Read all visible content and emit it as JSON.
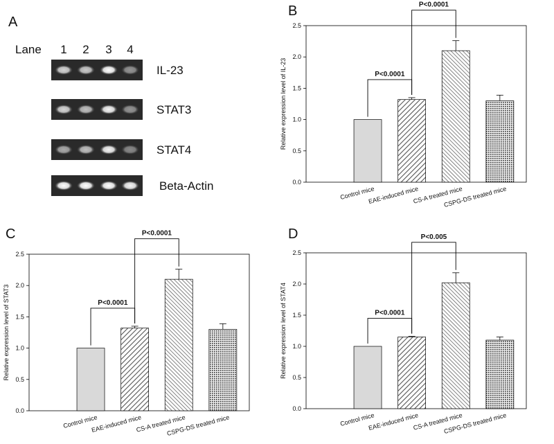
{
  "panel_labels": [
    "A",
    "B",
    "C",
    "D"
  ],
  "gel": {
    "lane_header": "Lane",
    "lanes": [
      "1",
      "2",
      "3",
      "4"
    ],
    "bands": [
      "IL-23",
      "STAT3",
      "STAT4",
      "Beta-Actin"
    ]
  },
  "chart_data": [
    {
      "type": "bar",
      "y_label": "Relative expression level of IL-23",
      "categories": [
        "Control mice",
        "EAE-induced mice",
        "CS-A treated mice",
        "CSPG-DS treated mice"
      ],
      "values": [
        1.0,
        1.32,
        2.1,
        1.3
      ],
      "errors": [
        0,
        0.03,
        0.16,
        0.09
      ],
      "ylim": [
        0,
        2.5
      ],
      "yticks": [
        {
          "value": 0,
          "label": "0.0"
        },
        {
          "value": 0.5,
          "label": "0.5"
        },
        {
          "value": 1,
          "label": "1.0"
        },
        {
          "value": 1.5,
          "label": "1.5"
        },
        {
          "value": 2,
          "label": "2.0"
        },
        {
          "value": 2.5,
          "label": "2.5"
        }
      ],
      "annotations": [
        "P<0.0001",
        "P<0.0001"
      ]
    },
    {
      "type": "bar",
      "y_label": "Relative expression level of STAT3",
      "categories": [
        "Control mice",
        "EAE-induced mice",
        "CS-A treated mice",
        "CSPG-DS treated mice"
      ],
      "values": [
        1.0,
        1.32,
        2.1,
        1.3
      ],
      "errors": [
        0,
        0.03,
        0.16,
        0.09
      ],
      "ylim": [
        0,
        2.5
      ],
      "yticks": [
        {
          "value": 0,
          "label": "0.0"
        },
        {
          "value": 0.5,
          "label": "0.5"
        },
        {
          "value": 1,
          "label": "1.0"
        },
        {
          "value": 1.5,
          "label": "1.5"
        },
        {
          "value": 2,
          "label": "2.0"
        },
        {
          "value": 2.5,
          "label": "2.5"
        }
      ],
      "annotations": [
        "P<0.0001",
        "P<0.0001"
      ]
    },
    {
      "type": "bar",
      "y_label": "Relative expression level of STAT4",
      "categories": [
        "Control mice",
        "EAE-induced mice",
        "CS-A treated mice",
        "CSPG-DS treated mice"
      ],
      "values": [
        1.0,
        1.15,
        2.02,
        1.1
      ],
      "errors": [
        0,
        0.01,
        0.16,
        0.05
      ],
      "ylim": [
        0,
        2.5
      ],
      "yticks": [
        {
          "value": 0,
          "label": "0.0"
        },
        {
          "value": 0.5,
          "label": "0.5"
        },
        {
          "value": 1,
          "label": "1.0"
        },
        {
          "value": 1.5,
          "label": "1.5"
        },
        {
          "value": 2,
          "label": "2.0"
        },
        {
          "value": 2.5,
          "label": "2.5"
        }
      ],
      "annotations": [
        "P<0.0001",
        "P<0.005"
      ]
    }
  ]
}
